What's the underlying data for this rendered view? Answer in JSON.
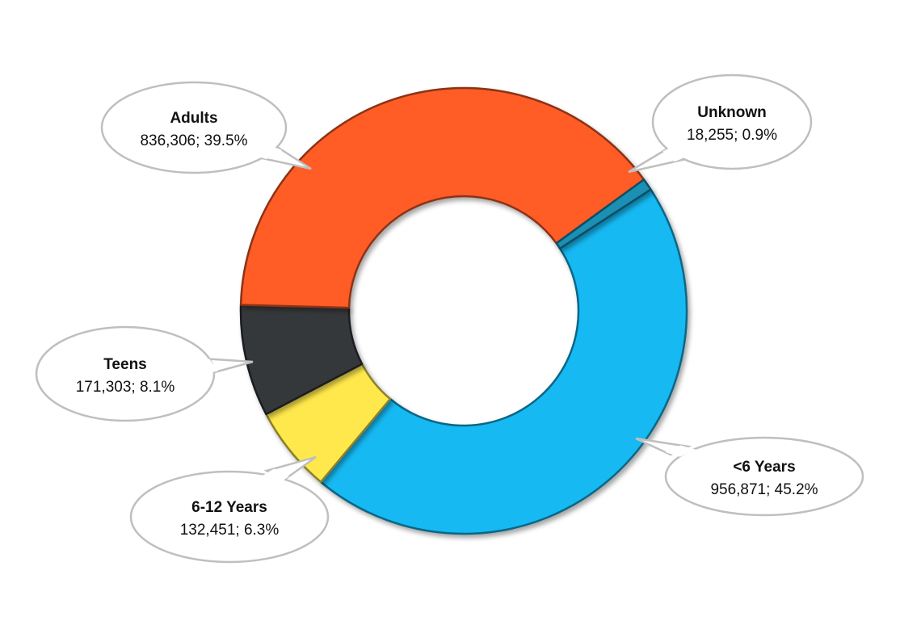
{
  "chart_data": {
    "type": "pie",
    "subtype": "donut",
    "title": "",
    "slices": [
      {
        "label": "<6 Years",
        "value": 956871,
        "percent": "45.2%",
        "value_text": "956,871",
        "color": "#12B9F2"
      },
      {
        "label": "6-12 Years",
        "value": 132451,
        "percent": "6.3%",
        "value_text": "132,451",
        "color": "#FFE84C"
      },
      {
        "label": "Teens",
        "value": 171303,
        "percent": "8.1%",
        "value_text": "171,303",
        "color": "#35383B"
      },
      {
        "label": "Adults",
        "value": 836306,
        "percent": "39.5%",
        "value_text": "836,306",
        "color": "#FF5C27"
      },
      {
        "label": "Unknown",
        "value": 18255,
        "percent": "0.9%",
        "value_text": "18,255",
        "color": "#1F8FB5"
      }
    ],
    "legend": "none",
    "data_labels": "callouts"
  }
}
